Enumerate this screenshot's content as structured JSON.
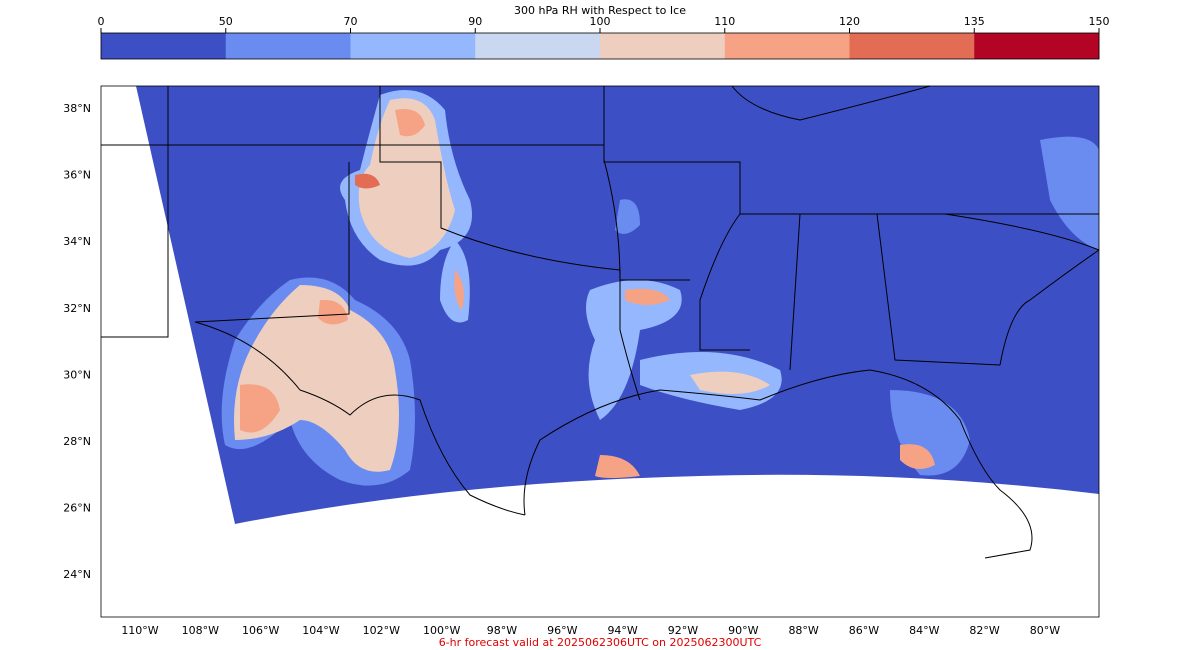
{
  "colorbar": {
    "title": "300 hPa RH with Respect to Ice",
    "ticks": [
      0,
      50,
      70,
      90,
      100,
      110,
      120,
      135,
      150
    ],
    "colors": [
      "#3d4fc4",
      "#6a8bef",
      "#95b7fe",
      "#c9d7f0",
      "#eecfbf",
      "#f6a385",
      "#e36c55",
      "#b40426"
    ]
  },
  "map": {
    "lat_labels": [
      "38°N",
      "36°N",
      "34°N",
      "32°N",
      "30°N",
      "28°N",
      "26°N",
      "24°N"
    ],
    "lon_labels": [
      "110°W",
      "108°W",
      "106°W",
      "104°W",
      "102°W",
      "100°W",
      "98°W",
      "96°W",
      "94°W",
      "92°W",
      "90°W",
      "88°W",
      "86°W",
      "84°W",
      "82°W",
      "80°W"
    ]
  },
  "footer": "6-hr forecast valid at 2025062306UTC on 2025062300UTC"
}
